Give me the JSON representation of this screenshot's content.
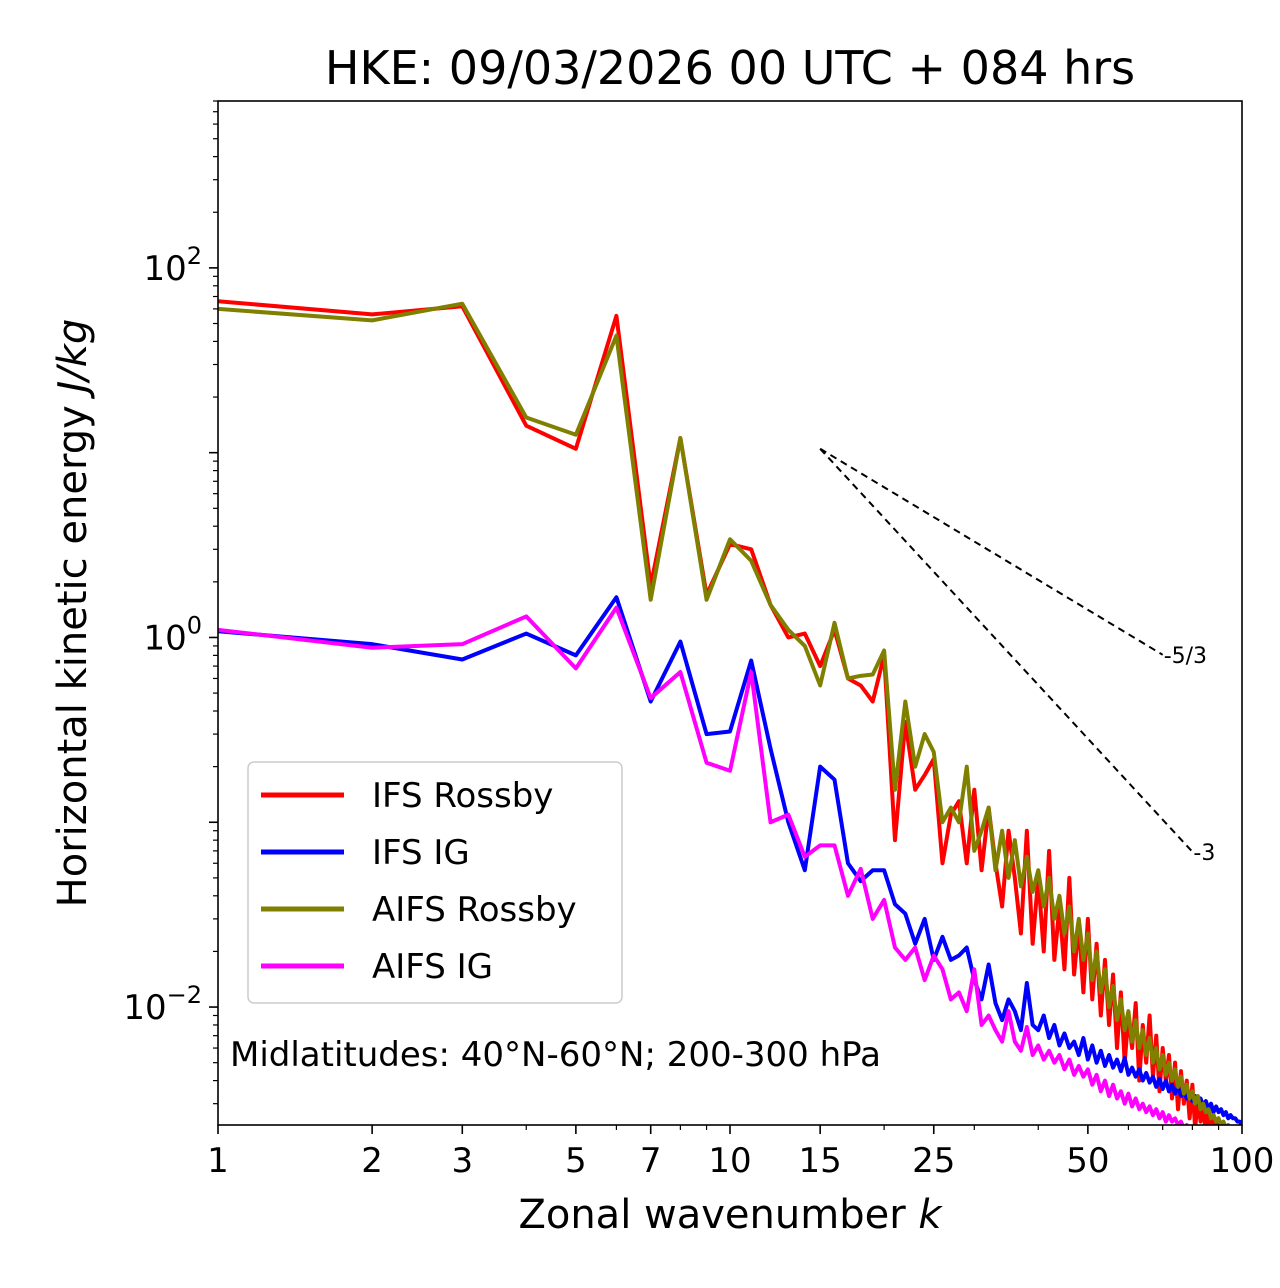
{
  "chart_data": {
    "type": "line",
    "title": "HKE: 09/03/2026 00 UTC + 084 hrs",
    "xlabel": "Zonal wavenumber",
    "xlabel_var": "k",
    "ylabel": "Horizontal kinetic energy",
    "ylabel_unit": "J/kg",
    "xscale": "log",
    "yscale": "log",
    "xlim": [
      1,
      100
    ],
    "ylim": [
      0.0023,
      800
    ],
    "x_ticks": [
      1,
      2,
      3,
      5,
      7,
      10,
      15,
      25,
      50,
      100
    ],
    "x_tick_labels": [
      "1",
      "2",
      "3",
      "5",
      "7",
      "10",
      "15",
      "25",
      "50",
      "100"
    ],
    "y_ticks": [
      {
        "value": 100,
        "base": "10",
        "exp": "2"
      },
      {
        "value": 1,
        "base": "10",
        "exp": "0"
      },
      {
        "value": 0.01,
        "base": "10",
        "exp": "−2"
      }
    ],
    "annotation": "Midlatitudes: 40°N-60°N; 200-300 hPa",
    "reference_lines": [
      {
        "label": "-5/3",
        "slope": -1.6667,
        "x_start": 15,
        "y_start": 10.5,
        "x_end": 70
      },
      {
        "label": "-3",
        "slope": -3,
        "x_start": 15,
        "y_start": 10.5,
        "x_end": 80
      }
    ],
    "legend_position": "lower-left",
    "x": [
      1,
      2,
      3,
      4,
      5,
      6,
      7,
      8,
      9,
      10,
      11,
      12,
      13,
      14,
      15,
      16,
      17,
      18,
      19,
      20,
      21,
      22,
      23,
      24,
      25,
      26,
      27,
      28,
      29,
      30,
      31,
      32,
      33,
      34,
      35,
      36,
      37,
      38,
      39,
      40,
      41,
      42,
      43,
      44,
      45,
      46,
      47,
      48,
      49,
      50,
      51,
      52,
      53,
      54,
      55,
      56,
      57,
      58,
      59,
      60,
      61,
      62,
      63,
      64,
      65,
      66,
      67,
      68,
      69,
      70,
      71,
      72,
      73,
      74,
      75,
      76,
      77,
      78,
      79,
      80,
      81,
      82,
      83,
      84,
      85,
      86,
      87,
      88,
      89,
      90,
      91,
      92,
      93,
      94,
      95,
      96,
      97,
      98,
      99,
      100
    ],
    "series": [
      {
        "name": "IFS Rossby",
        "color": "#ff0000",
        "values": [
          66,
          56,
          62,
          14,
          10.5,
          55,
          1.9,
          12,
          1.7,
          3.2,
          3.0,
          1.5,
          1.0,
          1.05,
          0.7,
          1.1,
          0.6,
          0.55,
          0.45,
          0.8,
          0.08,
          0.35,
          0.15,
          0.18,
          0.22,
          0.06,
          0.11,
          0.13,
          0.06,
          0.15,
          0.055,
          0.12,
          0.06,
          0.035,
          0.09,
          0.05,
          0.025,
          0.09,
          0.022,
          0.05,
          0.02,
          0.07,
          0.018,
          0.035,
          0.016,
          0.05,
          0.015,
          0.028,
          0.012,
          0.03,
          0.011,
          0.022,
          0.009,
          0.018,
          0.008,
          0.015,
          0.006,
          0.012,
          0.005,
          0.009,
          0.006,
          0.0105,
          0.004,
          0.008,
          0.005,
          0.009,
          0.0042,
          0.007,
          0.0035,
          0.006,
          0.004,
          0.0055,
          0.0032,
          0.005,
          0.0028,
          0.0045,
          0.003,
          0.004,
          0.0025,
          0.0038,
          0.0022,
          0.0032,
          0.0024,
          0.003,
          0.002,
          0.0028,
          0.0021,
          0.0026,
          0.0019,
          0.0025,
          0.0017,
          0.0022,
          0.0018,
          0.0021,
          0.0016,
          0.002,
          0.0015,
          0.0019,
          0.0016,
          0.0014
        ]
      },
      {
        "name": "IFS IG",
        "color": "#0000ff",
        "values": [
          1.08,
          0.92,
          0.76,
          1.05,
          0.8,
          1.65,
          0.45,
          0.95,
          0.3,
          0.31,
          0.75,
          0.25,
          0.1,
          0.055,
          0.2,
          0.17,
          0.06,
          0.048,
          0.055,
          0.055,
          0.036,
          0.032,
          0.022,
          0.03,
          0.018,
          0.024,
          0.018,
          0.019,
          0.021,
          0.014,
          0.011,
          0.017,
          0.0105,
          0.0085,
          0.011,
          0.0095,
          0.0075,
          0.0135,
          0.008,
          0.0075,
          0.009,
          0.0068,
          0.008,
          0.0062,
          0.0072,
          0.006,
          0.0065,
          0.0055,
          0.0068,
          0.0052,
          0.0062,
          0.005,
          0.0058,
          0.0048,
          0.0055,
          0.0047,
          0.0052,
          0.0045,
          0.0053,
          0.0043,
          0.0047,
          0.0042,
          0.0046,
          0.004,
          0.0044,
          0.0039,
          0.0042,
          0.0037,
          0.0041,
          0.0036,
          0.004,
          0.0035,
          0.0038,
          0.0034,
          0.0037,
          0.0033,
          0.0035,
          0.0032,
          0.0034,
          0.0031,
          0.0033,
          0.003,
          0.0032,
          0.0029,
          0.0031,
          0.0028,
          0.003,
          0.0027,
          0.0029,
          0.0027,
          0.0028,
          0.0026,
          0.0027,
          0.0025,
          0.0026,
          0.0025,
          0.0025,
          0.0024,
          0.0024,
          0.0023
        ]
      },
      {
        "name": "AIFS Rossby",
        "color": "#808000",
        "values": [
          60,
          52,
          64,
          15.5,
          12.5,
          43,
          1.6,
          12,
          1.6,
          3.4,
          2.6,
          1.5,
          1.1,
          0.9,
          0.55,
          1.2,
          0.6,
          0.62,
          0.63,
          0.85,
          0.15,
          0.45,
          0.2,
          0.3,
          0.24,
          0.1,
          0.12,
          0.1,
          0.2,
          0.07,
          0.09,
          0.12,
          0.055,
          0.09,
          0.05,
          0.08,
          0.045,
          0.065,
          0.042,
          0.055,
          0.035,
          0.05,
          0.03,
          0.04,
          0.025,
          0.035,
          0.02,
          0.03,
          0.018,
          0.025,
          0.014,
          0.02,
          0.012,
          0.016,
          0.01,
          0.013,
          0.0085,
          0.011,
          0.0075,
          0.0095,
          0.0065,
          0.0085,
          0.006,
          0.0075,
          0.0055,
          0.0068,
          0.005,
          0.006,
          0.0046,
          0.0055,
          0.0043,
          0.005,
          0.004,
          0.0046,
          0.0037,
          0.0042,
          0.0034,
          0.0038,
          0.0032,
          0.0035,
          0.003,
          0.0033,
          0.0028,
          0.003,
          0.0027,
          0.0028,
          0.0025,
          0.0026,
          0.0024,
          0.0025,
          0.0023,
          0.0024,
          0.0022,
          0.0023,
          0.0021,
          0.0022,
          0.002,
          0.0021,
          0.002,
          0.0019
        ]
      },
      {
        "name": "AIFS IG",
        "color": "#ff00ff",
        "values": [
          1.1,
          0.88,
          0.92,
          1.3,
          0.68,
          1.45,
          0.47,
          0.65,
          0.21,
          0.19,
          0.65,
          0.1,
          0.11,
          0.065,
          0.075,
          0.075,
          0.04,
          0.056,
          0.03,
          0.038,
          0.021,
          0.018,
          0.021,
          0.014,
          0.019,
          0.016,
          0.011,
          0.012,
          0.0095,
          0.016,
          0.008,
          0.009,
          0.0075,
          0.0065,
          0.0095,
          0.0065,
          0.0058,
          0.0078,
          0.0055,
          0.0062,
          0.0052,
          0.0058,
          0.005,
          0.0055,
          0.0046,
          0.0052,
          0.0043,
          0.0048,
          0.0042,
          0.0046,
          0.0038,
          0.0043,
          0.0035,
          0.004,
          0.0033,
          0.0038,
          0.0032,
          0.0035,
          0.003,
          0.0034,
          0.0029,
          0.0032,
          0.0028,
          0.003,
          0.0027,
          0.0029,
          0.0026,
          0.0028,
          0.0025,
          0.0027,
          0.0024,
          0.0026,
          0.0024,
          0.0025,
          0.0023,
          0.0024,
          0.0022,
          0.0023,
          0.0021,
          0.0022,
          0.0021,
          0.0021,
          0.002,
          0.0021,
          0.0019,
          0.002,
          0.0019,
          0.0019,
          0.0018,
          0.0019,
          0.0018,
          0.0018,
          0.0017,
          0.0018,
          0.0017,
          0.0017,
          0.0016,
          0.0016,
          0.0016,
          0.0015
        ]
      }
    ]
  }
}
